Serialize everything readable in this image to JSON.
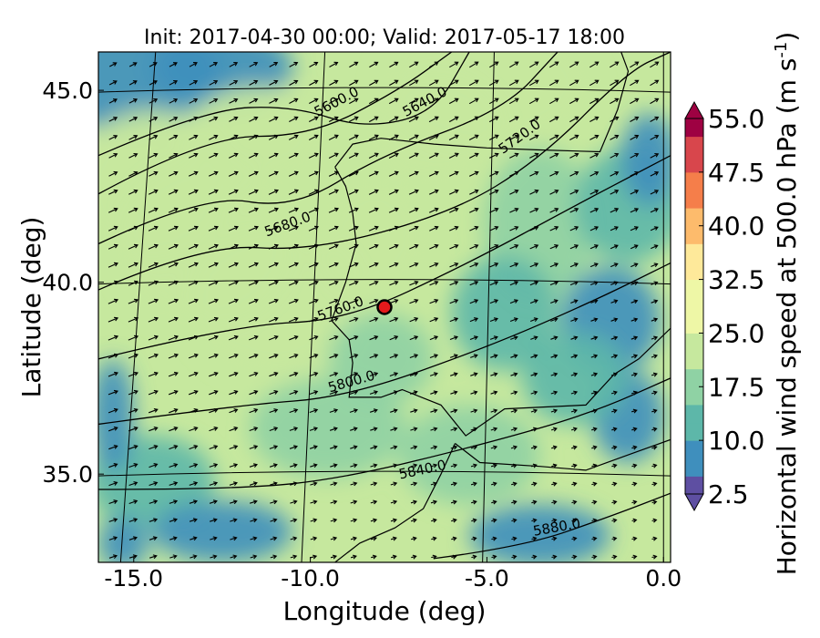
{
  "chart_data": {
    "type": "heatmap",
    "title": "Init: 2017-04-30 00:00; Valid: 2017-05-17 18:00",
    "xlabel": "Longitude (deg)",
    "ylabel": "Latitude (deg)",
    "x_ticks": [
      "-15.0",
      "-10.0",
      "-5.0",
      "0.0"
    ],
    "y_ticks": [
      "45.0",
      "40.0",
      "35.0"
    ],
    "xlim": [
      -16,
      0.2
    ],
    "ylim": [
      32.7,
      46
    ],
    "colorbar": {
      "label": "Horizontal wind speed at 500.0 hPa (m s$^{-1}$)",
      "range": [
        2.5,
        55.0
      ],
      "step": 2.5,
      "tick_labels": [
        "55.0",
        "47.5",
        "40.0",
        "32.5",
        "25.0",
        "17.5",
        "10.0",
        "2.5"
      ],
      "extend": "both",
      "colormap": "Spectral_r",
      "colors": [
        "#5e4fa2",
        "#3f8fbd",
        "#5db7a9",
        "#8fd2a4",
        "#c6e89e",
        "#eef7a6",
        "#fee99a",
        "#fdbb6c",
        "#f57e4a",
        "#d8464c",
        "#9e0142"
      ]
    },
    "contour_field": "geopotential height at 500.0 hPa",
    "contour_labels": [
      "5600.0",
      "5640.0",
      "5680.0",
      "5720.0",
      "5760.0",
      "5800.0",
      "5840.0",
      "5880.0"
    ],
    "marker": {
      "lon": -7.7,
      "lat": 39.3,
      "color": "#e31a1c"
    },
    "grid": true,
    "vector_field": "horizontal wind at 500.0 hPa"
  }
}
